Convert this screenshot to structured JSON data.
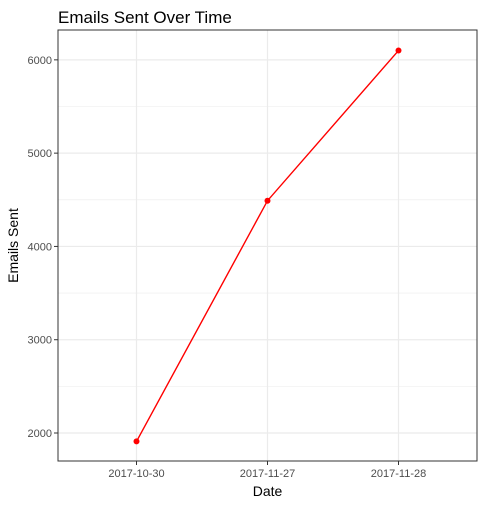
{
  "chart_data": {
    "type": "line",
    "title": "Emails Sent Over Time",
    "xlabel": "Date",
    "ylabel": "Emails Sent",
    "categories": [
      "2017-10-30",
      "2017-11-27",
      "2017-11-28"
    ],
    "series": [
      {
        "values": [
          1910,
          4490,
          6100
        ],
        "color": "#ff0000"
      }
    ],
    "yticks": [
      2000,
      3000,
      4000,
      5000,
      6000
    ],
    "ylim": [
      1700,
      6320
    ],
    "grid": true,
    "legend": "none",
    "panel_border_color": "#333333",
    "grid_color": "#ebebeb"
  }
}
